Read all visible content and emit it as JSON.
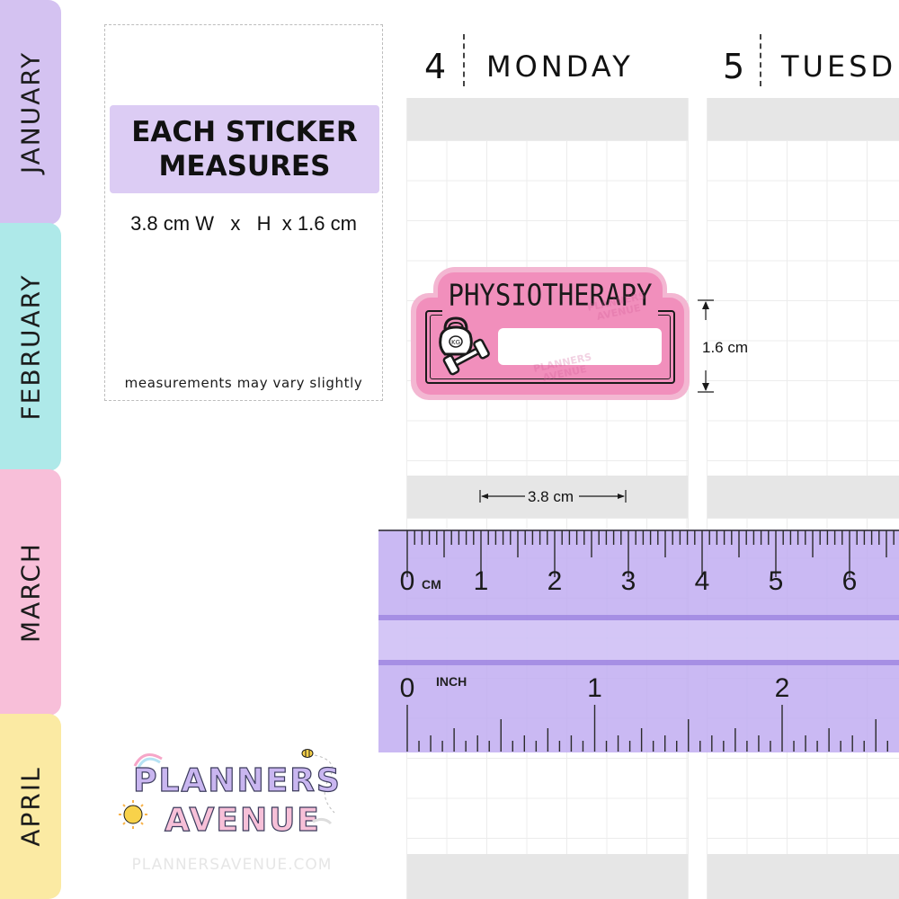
{
  "tabs": [
    {
      "label": "JANUARY",
      "color": "#d4c2f1"
    },
    {
      "label": "FEBRUARY",
      "color": "#aee9e9"
    },
    {
      "label": "MARCH",
      "color": "#f8bfd9"
    },
    {
      "label": "APRIL",
      "color": "#fbeaa3"
    }
  ],
  "info": {
    "title_line1": "EACH STICKER",
    "title_line2": "MEASURES",
    "size": "3.8 cm W   x   H  x 1.6 cm",
    "note": "measurements may vary slightly"
  },
  "days": [
    {
      "number": "4",
      "name": "MONDAY"
    },
    {
      "number": "5",
      "name": "TUESD"
    }
  ],
  "sticker": {
    "title": "PHYSIOTHERAPY",
    "icon": "kettlebell-dumbbell-icon",
    "icon_text": "KG",
    "watermark": "PLANNERS AVENUE"
  },
  "dimensions": {
    "height_label": "1.6 cm",
    "width_label": "3.8 cm"
  },
  "ruler": {
    "cm_unit": "CM",
    "inch_unit": "INCH",
    "cm_numbers": [
      "0",
      "1",
      "2",
      "3",
      "4",
      "5",
      "6"
    ],
    "inch_numbers": [
      "0",
      "1",
      "2"
    ]
  },
  "brand": {
    "logo_line1": "PLANNERS",
    "logo_line2": "AVENUE",
    "url": "PLANNERSAVENUE.COM"
  },
  "colors": {
    "accent_purple": "#dcccf4",
    "sticker_pink": "#f18fbc",
    "ruler_purple": "#beaaf0"
  }
}
